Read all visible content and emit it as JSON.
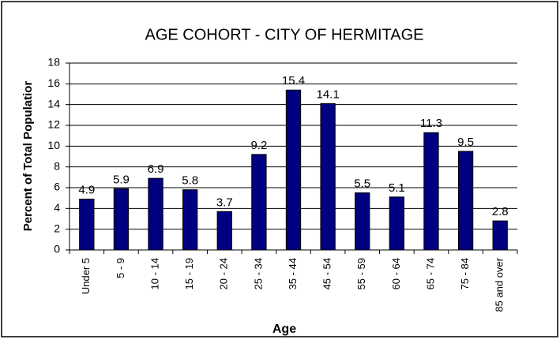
{
  "chart_data": {
    "type": "bar",
    "title": "AGE COHORT - CITY OF HERMITAGE",
    "x_label": "Age",
    "y_label": "Percent of Total Populatior",
    "categories": [
      "Under 5",
      "5 - 9",
      "10 - 14",
      "15 - 19",
      "20 - 24",
      "25 - 34",
      "35 - 44",
      "45 - 54",
      "55 - 59",
      "60 - 64",
      "65 - 74",
      "75 - 84",
      "85 and over"
    ],
    "values": [
      4.9,
      5.9,
      6.9,
      5.8,
      3.7,
      9.2,
      15.4,
      14.1,
      5.5,
      5.1,
      11.3,
      9.5,
      2.8
    ],
    "color": "#000080",
    "ylim": [
      0,
      18
    ],
    "yticks": [
      0,
      2,
      4,
      6,
      8,
      10,
      12,
      14,
      16,
      18
    ],
    "grid": true
  }
}
